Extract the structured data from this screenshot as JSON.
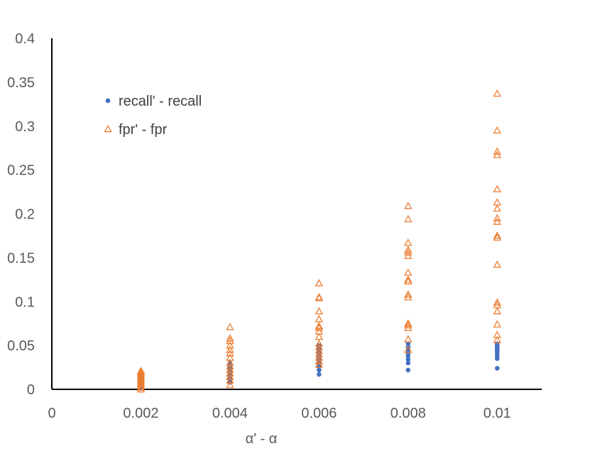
{
  "chart_data": {
    "type": "scatter",
    "xlabel": "α' - α",
    "ylabel": "",
    "xlim": [
      0,
      0.011
    ],
    "ylim": [
      0,
      0.4
    ],
    "x_ticks": [
      "0",
      "0.002",
      "0.004",
      "0.006",
      "0.008",
      "0.01"
    ],
    "y_ticks": [
      "0",
      "0.05",
      "0.1",
      "0.15",
      "0.2",
      "0.25",
      "0.3",
      "0.35",
      "0.4"
    ],
    "grid": false,
    "legend_position": "upper-left",
    "colors": {
      "recall": "#4472C4",
      "fpr": "#ED7D31",
      "axis": "#000000",
      "text": "#595959"
    },
    "series": [
      {
        "name": "recall' - recall",
        "marker": "circle",
        "color": "#4472C4",
        "points": [
          [
            0.002,
            0.001
          ],
          [
            0.002,
            0.002
          ],
          [
            0.002,
            0.003
          ],
          [
            0.002,
            0.004
          ],
          [
            0.002,
            0.005
          ],
          [
            0.002,
            0.006
          ],
          [
            0.002,
            0.007
          ],
          [
            0.002,
            0.008
          ],
          [
            0.002,
            0.009
          ],
          [
            0.002,
            0.01
          ],
          [
            0.002,
            0.011
          ],
          [
            0.002,
            0.012
          ],
          [
            0.002,
            0.013
          ],
          [
            0.002,
            0.014
          ],
          [
            0.002,
            0.015
          ],
          [
            0.004,
            0.008
          ],
          [
            0.004,
            0.012
          ],
          [
            0.004,
            0.015
          ],
          [
            0.004,
            0.018
          ],
          [
            0.004,
            0.021
          ],
          [
            0.004,
            0.024
          ],
          [
            0.004,
            0.027
          ],
          [
            0.004,
            0.03
          ],
          [
            0.006,
            0.017
          ],
          [
            0.006,
            0.022
          ],
          [
            0.006,
            0.026
          ],
          [
            0.006,
            0.03
          ],
          [
            0.006,
            0.034
          ],
          [
            0.006,
            0.038
          ],
          [
            0.006,
            0.042
          ],
          [
            0.006,
            0.046
          ],
          [
            0.006,
            0.05
          ],
          [
            0.008,
            0.022
          ],
          [
            0.008,
            0.03
          ],
          [
            0.008,
            0.034
          ],
          [
            0.008,
            0.038
          ],
          [
            0.008,
            0.041
          ],
          [
            0.008,
            0.045
          ],
          [
            0.008,
            0.048
          ],
          [
            0.008,
            0.052
          ],
          [
            0.01,
            0.024
          ],
          [
            0.01,
            0.035
          ],
          [
            0.01,
            0.038
          ],
          [
            0.01,
            0.041
          ],
          [
            0.01,
            0.044
          ],
          [
            0.01,
            0.046
          ],
          [
            0.01,
            0.048
          ],
          [
            0.01,
            0.05
          ],
          [
            0.01,
            0.052
          ]
        ]
      },
      {
        "name": "fpr' - fpr",
        "marker": "triangle-open",
        "color": "#ED7D31",
        "points": [
          [
            0.002,
            0.0
          ],
          [
            0.002,
            0.002
          ],
          [
            0.002,
            0.004
          ],
          [
            0.002,
            0.006
          ],
          [
            0.002,
            0.008
          ],
          [
            0.002,
            0.01
          ],
          [
            0.002,
            0.012
          ],
          [
            0.002,
            0.014
          ],
          [
            0.002,
            0.016
          ],
          [
            0.002,
            0.018
          ],
          [
            0.002,
            0.02
          ],
          [
            0.002,
            0.021
          ],
          [
            0.004,
            0.005
          ],
          [
            0.004,
            0.01
          ],
          [
            0.004,
            0.014
          ],
          [
            0.004,
            0.018
          ],
          [
            0.004,
            0.022
          ],
          [
            0.004,
            0.026
          ],
          [
            0.004,
            0.03
          ],
          [
            0.004,
            0.036
          ],
          [
            0.004,
            0.041
          ],
          [
            0.004,
            0.045
          ],
          [
            0.004,
            0.05
          ],
          [
            0.004,
            0.055
          ],
          [
            0.004,
            0.058
          ],
          [
            0.004,
            0.071
          ],
          [
            0.006,
            0.028
          ],
          [
            0.006,
            0.032
          ],
          [
            0.006,
            0.036
          ],
          [
            0.006,
            0.04
          ],
          [
            0.006,
            0.044
          ],
          [
            0.006,
            0.048
          ],
          [
            0.006,
            0.052
          ],
          [
            0.006,
            0.06
          ],
          [
            0.006,
            0.066
          ],
          [
            0.006,
            0.07
          ],
          [
            0.006,
            0.072
          ],
          [
            0.006,
            0.08
          ],
          [
            0.006,
            0.089
          ],
          [
            0.006,
            0.104
          ],
          [
            0.006,
            0.105
          ],
          [
            0.006,
            0.121
          ],
          [
            0.008,
            0.045
          ],
          [
            0.008,
            0.057
          ],
          [
            0.008,
            0.07
          ],
          [
            0.008,
            0.073
          ],
          [
            0.008,
            0.075
          ],
          [
            0.008,
            0.105
          ],
          [
            0.008,
            0.108
          ],
          [
            0.008,
            0.123
          ],
          [
            0.008,
            0.125
          ],
          [
            0.008,
            0.133
          ],
          [
            0.008,
            0.152
          ],
          [
            0.008,
            0.156
          ],
          [
            0.008,
            0.159
          ],
          [
            0.008,
            0.167
          ],
          [
            0.008,
            0.194
          ],
          [
            0.008,
            0.209
          ],
          [
            0.01,
            0.056
          ],
          [
            0.01,
            0.062
          ],
          [
            0.01,
            0.074
          ],
          [
            0.01,
            0.089
          ],
          [
            0.01,
            0.096
          ],
          [
            0.01,
            0.099
          ],
          [
            0.01,
            0.142
          ],
          [
            0.01,
            0.173
          ],
          [
            0.01,
            0.175
          ],
          [
            0.01,
            0.191
          ],
          [
            0.01,
            0.195
          ],
          [
            0.01,
            0.206
          ],
          [
            0.01,
            0.213
          ],
          [
            0.01,
            0.228
          ],
          [
            0.01,
            0.267
          ],
          [
            0.01,
            0.271
          ],
          [
            0.01,
            0.295
          ],
          [
            0.01,
            0.337
          ]
        ]
      }
    ]
  }
}
